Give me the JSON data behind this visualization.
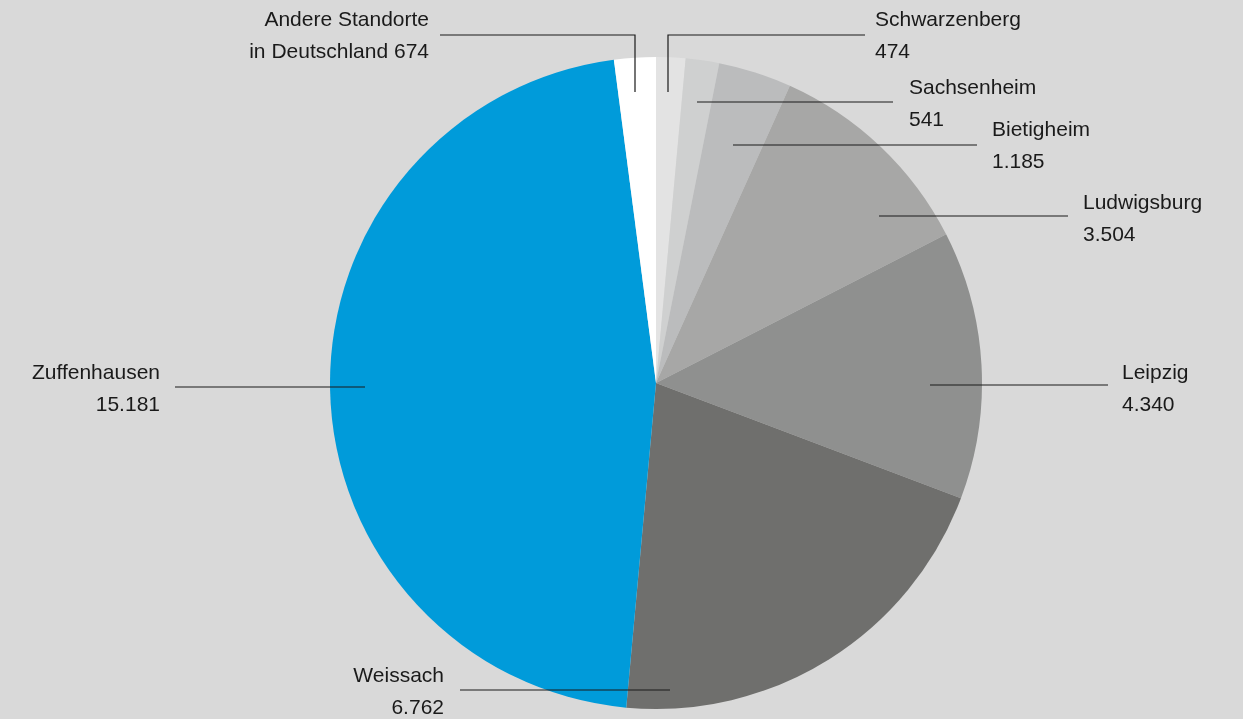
{
  "chart_data": {
    "type": "pie",
    "categories": [
      "Schwarzenberg",
      "Sachsenheim",
      "Bietigheim",
      "Ludwigsburg",
      "Leipzig",
      "Weissach",
      "Zuffenhausen",
      "Andere Standorte in Deutschland"
    ],
    "values": [
      474,
      541,
      1185,
      3504,
      4340,
      6762,
      15181,
      674
    ],
    "value_labels": [
      "474",
      "541",
      "1.185",
      "3.504",
      "4.340",
      "6.762",
      "15.181",
      "674"
    ],
    "colors": [
      "#e3e3e3",
      "#cfd0d0",
      "#bbbcbd",
      "#a7a7a6",
      "#8f908f",
      "#6f6f6d",
      "#009bda",
      "#ffffff"
    ],
    "legend": false
  }
}
